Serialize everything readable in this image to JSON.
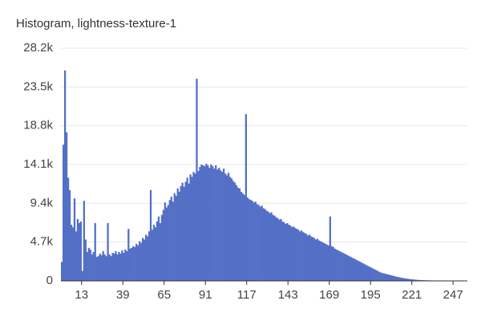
{
  "chart_data": {
    "type": "histogram",
    "title": "Histogram, lightness-texture-1",
    "color": "#5470c6",
    "grid": true,
    "bins": [
      0,
      1,
      2,
      3,
      4,
      5,
      6,
      7,
      8,
      9,
      10,
      11,
      12,
      13,
      14,
      15,
      16,
      17,
      18,
      19,
      20,
      21,
      22,
      23,
      24,
      25,
      26,
      27,
      28,
      29,
      30,
      31,
      32,
      33,
      34,
      35,
      36,
      37,
      38,
      39,
      40,
      41,
      42,
      43,
      44,
      45,
      46,
      47,
      48,
      49,
      50,
      51,
      52,
      53,
      54,
      55,
      56,
      57,
      58,
      59,
      60,
      61,
      62,
      63,
      64,
      65,
      66,
      67,
      68,
      69,
      70,
      71,
      72,
      73,
      74,
      75,
      76,
      77,
      78,
      79,
      80,
      81,
      82,
      83,
      84,
      85,
      86,
      87,
      88,
      89,
      90,
      91,
      92,
      93,
      94,
      95,
      96,
      97,
      98,
      99,
      100,
      101,
      102,
      103,
      104,
      105,
      106,
      107,
      108,
      109,
      110,
      111,
      112,
      113,
      114,
      115,
      116,
      117,
      118,
      119,
      120,
      121,
      122,
      123,
      124,
      125,
      126,
      127,
      128,
      129,
      130,
      131,
      132,
      133,
      134,
      135,
      136,
      137,
      138,
      139,
      140,
      141,
      142,
      143,
      144,
      145,
      146,
      147,
      148,
      149,
      150,
      151,
      152,
      153,
      154,
      155,
      156,
      157,
      158,
      159,
      160,
      161,
      162,
      163,
      164,
      165,
      166,
      167,
      168,
      169,
      170,
      171,
      172,
      173,
      174,
      175,
      176,
      177,
      178,
      179,
      180,
      181,
      182,
      183,
      184,
      185,
      186,
      187,
      188,
      189,
      190,
      191,
      192,
      193,
      194,
      195,
      196,
      197,
      198,
      199,
      200,
      201,
      202,
      203,
      204,
      205,
      206,
      207,
      208,
      209,
      210,
      211,
      212,
      213,
      214,
      215,
      216,
      217,
      218,
      219,
      220,
      221,
      222,
      223,
      224,
      225,
      226,
      227,
      228,
      229,
      230,
      231,
      232,
      233,
      234,
      235,
      236,
      237,
      238,
      239,
      240,
      241,
      242,
      243,
      244,
      245,
      246,
      247,
      248,
      249,
      250,
      251,
      252,
      253,
      254,
      255,
      256
    ],
    "values": [
      2300,
      16500,
      25500,
      18000,
      12500,
      11000,
      6800,
      6500,
      10000,
      6000,
      7500,
      7000,
      7200,
      1200,
      9700,
      5000,
      3500,
      4000,
      3800,
      3200,
      3500,
      7000,
      2900,
      3000,
      3300,
      3100,
      3600,
      3200,
      3000,
      7000,
      3200,
      3000,
      3400,
      3300,
      3600,
      3200,
      3500,
      3300,
      3700,
      3400,
      3800,
      3600,
      6300,
      3900,
      4000,
      4200,
      4100,
      4500,
      4300,
      4800,
      4600,
      5200,
      5000,
      5600,
      5400,
      6000,
      11000,
      6200,
      6800,
      6500,
      7200,
      7800,
      7000,
      8000,
      8600,
      9500,
      8900,
      9200,
      9800,
      10200,
      9600,
      10600,
      10300,
      11200,
      10800,
      11500,
      11900,
      11400,
      12000,
      12500,
      11800,
      12900,
      12600,
      13200,
      13000,
      24500,
      13300,
      13800,
      14100,
      14000,
      13900,
      14200,
      14000,
      13700,
      14100,
      13900,
      13600,
      14000,
      13500,
      13700,
      13400,
      13200,
      13600,
      13000,
      12800,
      13100,
      12600,
      12400,
      12100,
      11900,
      11600,
      11300,
      11200,
      10800,
      10600,
      10400,
      20200,
      10100,
      9900,
      9800,
      9700,
      9500,
      9600,
      9300,
      9200,
      9000,
      9100,
      8800,
      8700,
      8500,
      8400,
      8200,
      8300,
      8000,
      7900,
      7700,
      7600,
      7400,
      7500,
      7200,
      7100,
      6900,
      7000,
      6800,
      6700,
      6500,
      6600,
      6400,
      6300,
      6200,
      6000,
      6100,
      5900,
      5800,
      5700,
      5500,
      5600,
      5400,
      5300,
      5200,
      5000,
      5100,
      4900,
      4800,
      4700,
      4600,
      4500,
      4400,
      4300,
      7800,
      4200,
      4100,
      3900,
      3800,
      3700,
      3600,
      3500,
      3400,
      3300,
      3200,
      3100,
      3000,
      2900,
      2800,
      2700,
      2600,
      2500,
      2400,
      2300,
      2200,
      2100,
      2000,
      1900,
      1800,
      1700,
      1600,
      1500,
      1400,
      1300,
      1200,
      1100,
      1000,
      950,
      900,
      850,
      800,
      750,
      700,
      650,
      600,
      550,
      500,
      460,
      420,
      380,
      340,
      310,
      280,
      250,
      220,
      200,
      180,
      160,
      140,
      120,
      110,
      100,
      90,
      80,
      75,
      70,
      65,
      60,
      55,
      50,
      48,
      46,
      44,
      42,
      40,
      38,
      36,
      34,
      32,
      30,
      28,
      26,
      24,
      22,
      20,
      18,
      16,
      14,
      12,
      10,
      8
    ],
    "xlim": [
      0,
      256
    ],
    "xticks": [
      13,
      39,
      65,
      91,
      117,
      143,
      169,
      195,
      221,
      247
    ],
    "ylim": [
      0,
      28200
    ],
    "yticks": [
      0,
      {
        "value": 4700,
        "label": "4.7k"
      },
      {
        "value": 9400,
        "label": "9.4k"
      },
      {
        "value": 14100,
        "label": "14.1k"
      },
      {
        "value": 18800,
        "label": "18.8k"
      },
      {
        "value": 23500,
        "label": "23.5k"
      },
      {
        "value": 28200,
        "label": "28.2k"
      }
    ]
  }
}
